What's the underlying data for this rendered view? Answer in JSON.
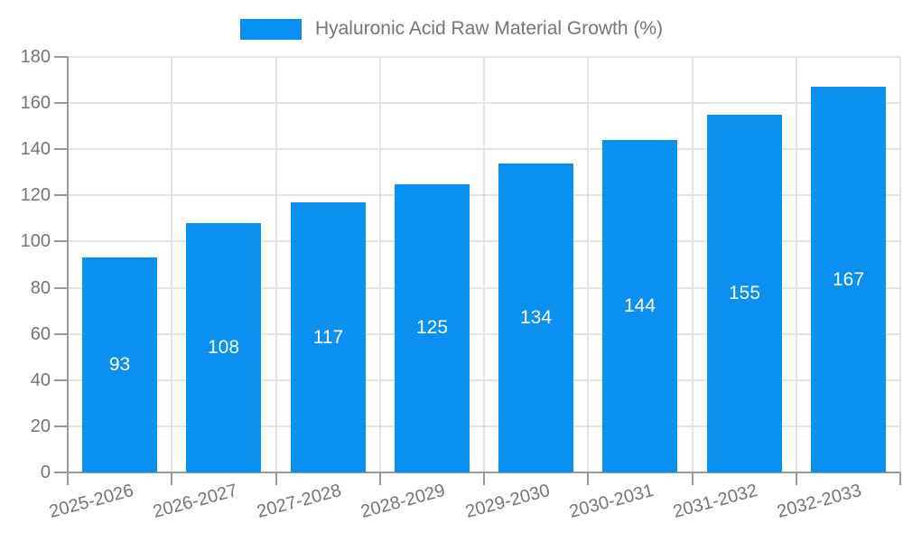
{
  "legend": {
    "label": "Hyaluronic Acid Raw Material Growth (%)"
  },
  "chart_data": {
    "type": "bar",
    "title": "Hyaluronic Acid Raw Material Growth (%)",
    "categories": [
      "2025-2026",
      "2026-2027",
      "2027-2028",
      "2028-2029",
      "2029-2030",
      "2030-2031",
      "2031-2032",
      "2032-2033"
    ],
    "values": [
      93,
      108,
      117,
      125,
      134,
      144,
      155,
      167
    ],
    "xlabel": "",
    "ylabel": "",
    "ylim": [
      0,
      180
    ],
    "yticks": [
      0,
      20,
      40,
      60,
      80,
      100,
      120,
      140,
      160,
      180
    ],
    "grid": true,
    "legend_position": "top-center",
    "x_label_rotation_deg": -15,
    "colors": {
      "bar": "#0a90f0",
      "value_label": "#ffffff",
      "axis": "#999999",
      "grid": "#e3e3e3",
      "tick_label": "#757575",
      "legend_label": "#757575",
      "background": "#ffffff"
    }
  }
}
